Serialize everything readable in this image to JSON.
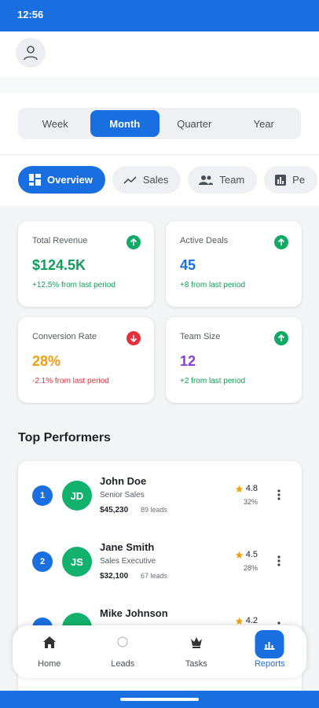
{
  "status_bar": {
    "time": "12:56"
  },
  "period_tabs": [
    "Week",
    "Month",
    "Quarter",
    "Year"
  ],
  "view_tabs": [
    "Overview",
    "Sales",
    "Team",
    "Pe"
  ],
  "stats": [
    {
      "label": "Total Revenue",
      "value": "$124.5K",
      "change": "+12.5% from last period"
    },
    {
      "label": "Active Deals",
      "value": "45",
      "change": "+8 from last period"
    },
    {
      "label": "Conversion Rate",
      "value": "28%",
      "change": "-2.1% from last period"
    },
    {
      "label": "Team Size",
      "value": "12",
      "change": "+2 from last period"
    }
  ],
  "top_performers": {
    "title": "Top Performers",
    "people": [
      {
        "rank": 1,
        "initials": "JD",
        "name": "John Doe",
        "role": "Senior Sales",
        "revenue": "$45,230",
        "leads": "89 leads",
        "rating": 4.8,
        "score": "32%"
      },
      {
        "rank": 2,
        "initials": "JS",
        "name": "Jane Smith",
        "role": "Sales Executive",
        "revenue": "$32,100",
        "leads": "67 leads",
        "rating": 4.5,
        "score": "28%"
      },
      {
        "name": "Mike Johnson",
        "rating": 4.2
      }
    ]
  },
  "bottom_nav": [
    "Home",
    "Leads",
    "Tasks",
    "Reports"
  ]
}
